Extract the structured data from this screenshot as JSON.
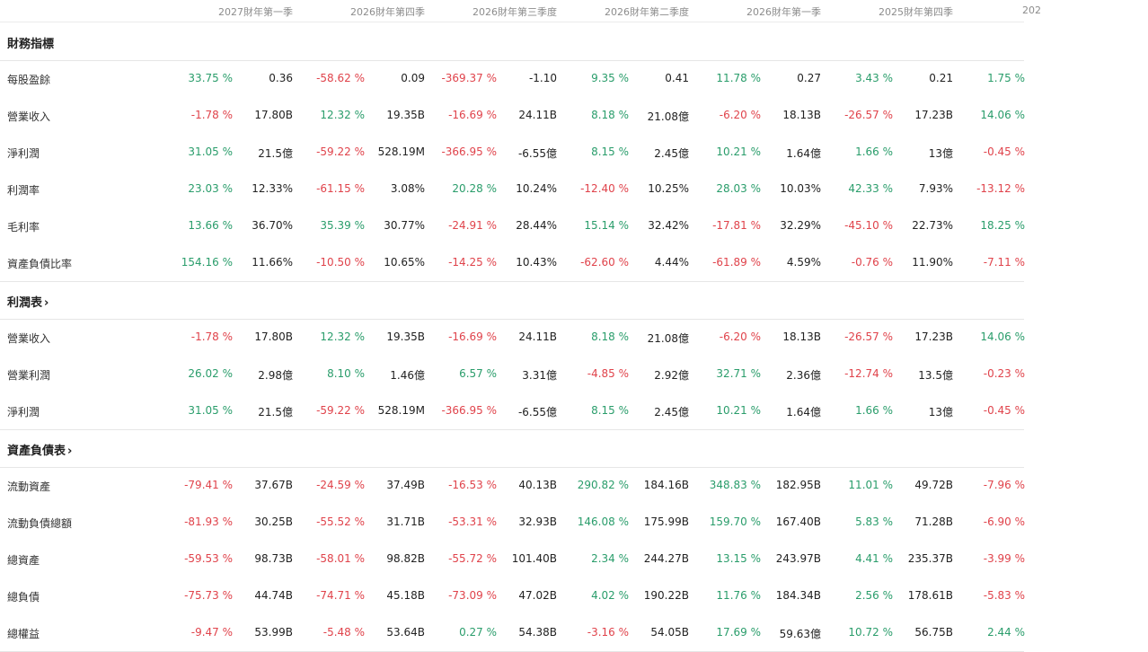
{
  "header": {
    "periods": [
      "2027財年第一季",
      "2026財年第四季",
      "2026財年第三季度",
      "2026財年第二季度",
      "2026財年第一季",
      "2025財年第四季",
      "202"
    ]
  },
  "colors": {
    "positive": "#2a9d6b",
    "negative": "#e0434b"
  },
  "sections": [
    {
      "title": "財務指標",
      "link": false,
      "rows": [
        {
          "label": "每股盈餘",
          "cells": [
            {
              "p": "33.75 %",
              "v": "0.36"
            },
            {
              "p": "-58.62 %",
              "v": "0.09"
            },
            {
              "p": "-369.37 %",
              "v": "-1.10"
            },
            {
              "p": "9.35 %",
              "v": "0.41"
            },
            {
              "p": "11.78 %",
              "v": "0.27"
            },
            {
              "p": "3.43 %",
              "v": "0.21"
            },
            {
              "p": "1.75 %",
              "v": ""
            }
          ]
        },
        {
          "label": "營業收入",
          "cells": [
            {
              "p": "-1.78 %",
              "v": "17.80B"
            },
            {
              "p": "12.32 %",
              "v": "19.35B"
            },
            {
              "p": "-16.69 %",
              "v": "24.11B"
            },
            {
              "p": "8.18 %",
              "v": "21.08億"
            },
            {
              "p": "-6.20 %",
              "v": "18.13B"
            },
            {
              "p": "-26.57 %",
              "v": "17.23B"
            },
            {
              "p": "14.06 %",
              "v": ""
            }
          ]
        },
        {
          "label": "淨利潤",
          "cells": [
            {
              "p": "31.05 %",
              "v": "21.5億"
            },
            {
              "p": "-59.22 %",
              "v": "528.19M"
            },
            {
              "p": "-366.95 %",
              "v": "-6.55億"
            },
            {
              "p": "8.15 %",
              "v": "2.45億"
            },
            {
              "p": "10.21 %",
              "v": "1.64億"
            },
            {
              "p": "1.66 %",
              "v": "13億"
            },
            {
              "p": "-0.45 %",
              "v": ""
            }
          ]
        },
        {
          "label": "利潤率",
          "cells": [
            {
              "p": "23.03 %",
              "v": "12.33%"
            },
            {
              "p": "-61.15 %",
              "v": "3.08%"
            },
            {
              "p": "20.28 %",
              "v": "10.24%"
            },
            {
              "p": "-12.40 %",
              "v": "10.25%"
            },
            {
              "p": "28.03 %",
              "v": "10.03%"
            },
            {
              "p": "42.33 %",
              "v": "7.93%"
            },
            {
              "p": "-13.12 %",
              "v": ""
            }
          ]
        },
        {
          "label": "毛利率",
          "cells": [
            {
              "p": "13.66 %",
              "v": "36.70%"
            },
            {
              "p": "35.39 %",
              "v": "30.77%"
            },
            {
              "p": "-24.91 %",
              "v": "28.44%"
            },
            {
              "p": "15.14 %",
              "v": "32.42%"
            },
            {
              "p": "-17.81 %",
              "v": "32.29%"
            },
            {
              "p": "-45.10 %",
              "v": "22.73%"
            },
            {
              "p": "18.25 %",
              "v": ""
            }
          ]
        },
        {
          "label": "資產負債比率",
          "cells": [
            {
              "p": "154.16 %",
              "v": "11.66%"
            },
            {
              "p": "-10.50 %",
              "v": "10.65%"
            },
            {
              "p": "-14.25 %",
              "v": "10.43%"
            },
            {
              "p": "-62.60 %",
              "v": "4.44%"
            },
            {
              "p": "-61.89 %",
              "v": "4.59%"
            },
            {
              "p": "-0.76 %",
              "v": "11.90%"
            },
            {
              "p": "-7.11 %",
              "v": ""
            }
          ]
        }
      ]
    },
    {
      "title": "利潤表",
      "link": true,
      "rows": [
        {
          "label": "營業收入",
          "cells": [
            {
              "p": "-1.78 %",
              "v": "17.80B"
            },
            {
              "p": "12.32 %",
              "v": "19.35B"
            },
            {
              "p": "-16.69 %",
              "v": "24.11B"
            },
            {
              "p": "8.18 %",
              "v": "21.08億"
            },
            {
              "p": "-6.20 %",
              "v": "18.13B"
            },
            {
              "p": "-26.57 %",
              "v": "17.23B"
            },
            {
              "p": "14.06 %",
              "v": ""
            }
          ]
        },
        {
          "label": "營業利潤",
          "cells": [
            {
              "p": "26.02 %",
              "v": "2.98億"
            },
            {
              "p": "8.10 %",
              "v": "1.46億"
            },
            {
              "p": "6.57 %",
              "v": "3.31億"
            },
            {
              "p": "-4.85 %",
              "v": "2.92億"
            },
            {
              "p": "32.71 %",
              "v": "2.36億"
            },
            {
              "p": "-12.74 %",
              "v": "13.5億"
            },
            {
              "p": "-0.23 %",
              "v": ""
            }
          ]
        },
        {
          "label": "淨利潤",
          "cells": [
            {
              "p": "31.05 %",
              "v": "21.5億"
            },
            {
              "p": "-59.22 %",
              "v": "528.19M"
            },
            {
              "p": "-366.95 %",
              "v": "-6.55億"
            },
            {
              "p": "8.15 %",
              "v": "2.45億"
            },
            {
              "p": "10.21 %",
              "v": "1.64億"
            },
            {
              "p": "1.66 %",
              "v": "13億"
            },
            {
              "p": "-0.45 %",
              "v": ""
            }
          ]
        }
      ]
    },
    {
      "title": "資產負債表",
      "link": true,
      "rows": [
        {
          "label": "流動資產",
          "cells": [
            {
              "p": "-79.41 %",
              "v": "37.67B"
            },
            {
              "p": "-24.59 %",
              "v": "37.49B"
            },
            {
              "p": "-16.53 %",
              "v": "40.13B"
            },
            {
              "p": "290.82 %",
              "v": "184.16B"
            },
            {
              "p": "348.83 %",
              "v": "182.95B"
            },
            {
              "p": "11.01 %",
              "v": "49.72B"
            },
            {
              "p": "-7.96 %",
              "v": ""
            }
          ]
        },
        {
          "label": "流動負債總額",
          "cells": [
            {
              "p": "-81.93 %",
              "v": "30.25B"
            },
            {
              "p": "-55.52 %",
              "v": "31.71B"
            },
            {
              "p": "-53.31 %",
              "v": "32.93B"
            },
            {
              "p": "146.08 %",
              "v": "175.99B"
            },
            {
              "p": "159.70 %",
              "v": "167.40B"
            },
            {
              "p": "5.83 %",
              "v": "71.28B"
            },
            {
              "p": "-6.90 %",
              "v": ""
            }
          ]
        },
        {
          "label": "總資產",
          "cells": [
            {
              "p": "-59.53 %",
              "v": "98.73B"
            },
            {
              "p": "-58.01 %",
              "v": "98.82B"
            },
            {
              "p": "-55.72 %",
              "v": "101.40B"
            },
            {
              "p": "2.34 %",
              "v": "244.27B"
            },
            {
              "p": "13.15 %",
              "v": "243.97B"
            },
            {
              "p": "4.41 %",
              "v": "235.37B"
            },
            {
              "p": "-3.99 %",
              "v": ""
            }
          ]
        },
        {
          "label": "總負債",
          "cells": [
            {
              "p": "-75.73 %",
              "v": "44.74B"
            },
            {
              "p": "-74.71 %",
              "v": "45.18B"
            },
            {
              "p": "-73.09 %",
              "v": "47.02B"
            },
            {
              "p": "4.02 %",
              "v": "190.22B"
            },
            {
              "p": "11.76 %",
              "v": "184.34B"
            },
            {
              "p": "2.56 %",
              "v": "178.61B"
            },
            {
              "p": "-5.83 %",
              "v": ""
            }
          ]
        },
        {
          "label": "總權益",
          "cells": [
            {
              "p": "-9.47 %",
              "v": "53.99B"
            },
            {
              "p": "-5.48 %",
              "v": "53.64B"
            },
            {
              "p": "0.27 %",
              "v": "54.38B"
            },
            {
              "p": "-3.16 %",
              "v": "54.05B"
            },
            {
              "p": "17.69 %",
              "v": "59.63億"
            },
            {
              "p": "10.72 %",
              "v": "56.75B"
            },
            {
              "p": "2.44 %",
              "v": ""
            }
          ]
        }
      ]
    }
  ]
}
